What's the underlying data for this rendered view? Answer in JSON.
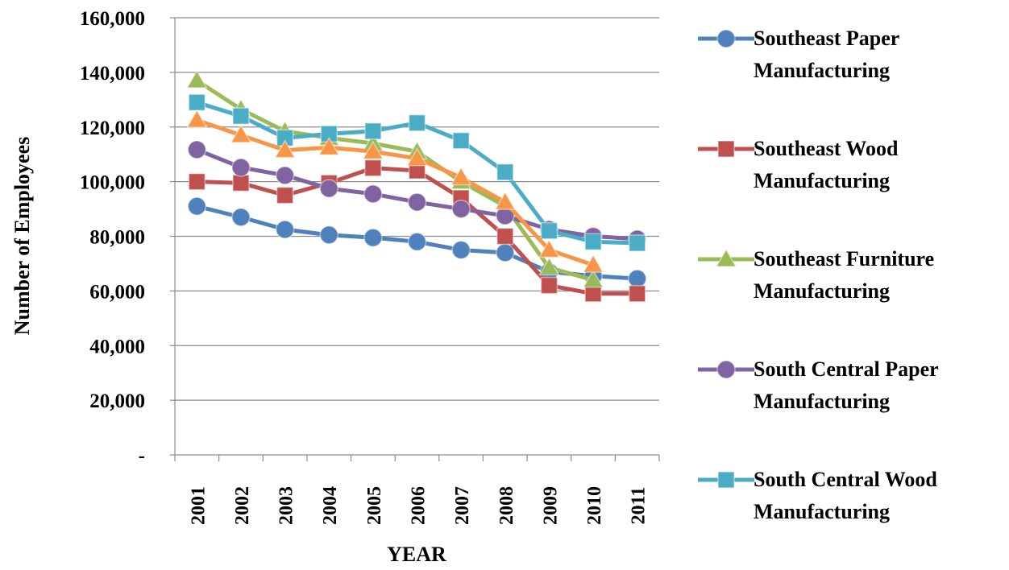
{
  "chart_data": {
    "type": "line",
    "y_label": "Number of Employees",
    "x_label": "YEAR",
    "categories": [
      "2001",
      "2002",
      "2003",
      "2004",
      "2005",
      "2006",
      "2007",
      "2008",
      "2009",
      "2010",
      "2011"
    ],
    "ylim": [
      0,
      160000
    ],
    "yticks": [
      {
        "value": 0,
        "label": "-"
      },
      {
        "value": 20000,
        "label": "20,000"
      },
      {
        "value": 40000,
        "label": "40,000"
      },
      {
        "value": 60000,
        "label": "60,000"
      },
      {
        "value": 80000,
        "label": "80,000"
      },
      {
        "value": 100000,
        "label": "100,000"
      },
      {
        "value": 120000,
        "label": "120,000"
      },
      {
        "value": 140000,
        "label": "140,000"
      },
      {
        "value": 160000,
        "label": "160,000"
      }
    ],
    "grid": true,
    "legend": "right",
    "series": [
      {
        "name": "Southeast Paper Manufacturing",
        "color": "#4f81bd",
        "marker": "circle",
        "values": [
          91000,
          87000,
          82500,
          80500,
          79500,
          78000,
          75000,
          74000,
          67000,
          65500,
          64500
        ]
      },
      {
        "name": "Southeast Wood Manufacturing",
        "color": "#c0504d",
        "marker": "square",
        "values": [
          100000,
          99500,
          95000,
          99500,
          105000,
          104000,
          94000,
          80000,
          62000,
          59000,
          59000
        ]
      },
      {
        "name": "Southeast Furniture Manufacturing",
        "color": "#9bbb59",
        "marker": "triangle",
        "values": [
          137000,
          126500,
          118500,
          116000,
          114000,
          111000,
          100000,
          91000,
          68500,
          64000,
          null
        ]
      },
      {
        "name": "South Central Paper Manufacturing",
        "color": "#8064a2",
        "marker": "circle",
        "values": [
          111700,
          105200,
          102300,
          97500,
          95500,
          92500,
          90000,
          87500,
          82500,
          80000,
          79000
        ]
      },
      {
        "name": "South Central Wood Manufacturing",
        "color": "#4bacc6",
        "marker": "square",
        "values": [
          129000,
          124000,
          116000,
          117500,
          118500,
          121500,
          115000,
          103500,
          82000,
          78000,
          77500
        ]
      },
      {
        "color": "#f79646",
        "marker": "triangle",
        "values": [
          122500,
          117000,
          111500,
          112500,
          111000,
          108500,
          101500,
          92500,
          75000,
          69500,
          null
        ]
      }
    ]
  }
}
